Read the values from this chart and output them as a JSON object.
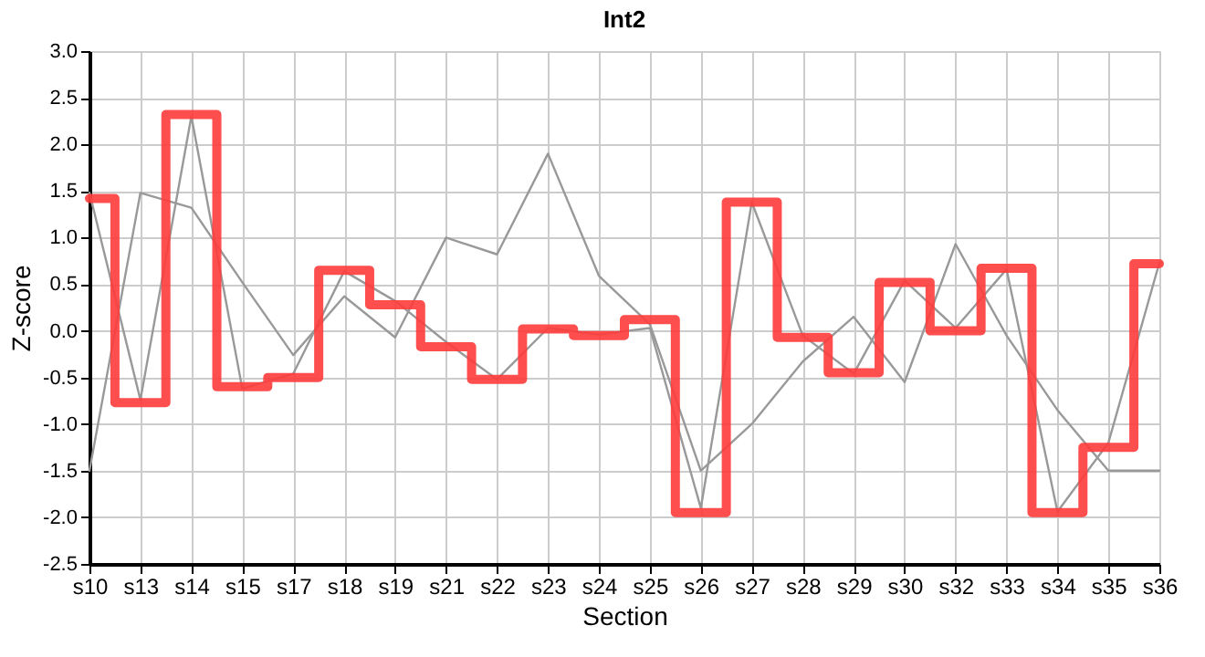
{
  "chart_data": {
    "type": "line",
    "title": "Int2",
    "xlabel": "Section",
    "ylabel": "Z-score",
    "categories": [
      "s10",
      "s13",
      "s14",
      "s15",
      "s17",
      "s18",
      "s19",
      "s21",
      "s22",
      "s23",
      "s24",
      "s25",
      "s26",
      "s27",
      "s28",
      "s29",
      "s30",
      "s32",
      "s33",
      "s34",
      "s35",
      "s36"
    ],
    "series": [
      {
        "color": "#999999",
        "values": [
          -1.5,
          1.48,
          1.32,
          0.52,
          -0.26,
          0.37,
          -0.07,
          1.0,
          0.82,
          1.9,
          0.59,
          0.07,
          -1.5,
          -1.0,
          -0.33,
          0.15,
          -0.55,
          0.93,
          -0.05,
          -0.85,
          -1.5,
          -1.5
        ]
      },
      {
        "color": "#999999",
        "values": [
          1.48,
          -0.74,
          2.3,
          -0.62,
          -0.46,
          0.64,
          0.32,
          -0.12,
          -0.52,
          0.03,
          -0.04,
          0.03,
          -1.9,
          1.38,
          -0.05,
          -0.46,
          0.54,
          0.03,
          0.66,
          -1.94,
          -1.2,
          0.73
        ]
      },
      {
        "type": "step",
        "color": "#ff3b3b",
        "values": [
          1.42,
          -0.77,
          2.32,
          -0.6,
          -0.5,
          0.65,
          0.28,
          -0.17,
          -0.52,
          0.02,
          -0.05,
          0.12,
          -1.95,
          1.38,
          -0.07,
          -0.45,
          0.52,
          0.0,
          0.67,
          -1.95,
          -1.25,
          0.72
        ]
      }
    ],
    "ylim": [
      -2.5,
      3.0
    ],
    "yticks": [
      {
        "value": -2.5,
        "label": "-2.5"
      },
      {
        "value": -2.0,
        "label": "-2.0"
      },
      {
        "value": -1.5,
        "label": "-1.5"
      },
      {
        "value": -1.0,
        "label": "-1.0"
      },
      {
        "value": -0.5,
        "label": "-0.5"
      },
      {
        "value": 0.0,
        "label": "0.0"
      },
      {
        "value": 0.5,
        "label": "0.5"
      },
      {
        "value": 1.0,
        "label": "1.0"
      },
      {
        "value": 1.5,
        "label": "1.5"
      },
      {
        "value": 2.0,
        "label": "2.0"
      },
      {
        "value": 2.5,
        "label": "2.5"
      },
      {
        "value": 3.0,
        "label": "3.0"
      }
    ],
    "grid": true
  }
}
